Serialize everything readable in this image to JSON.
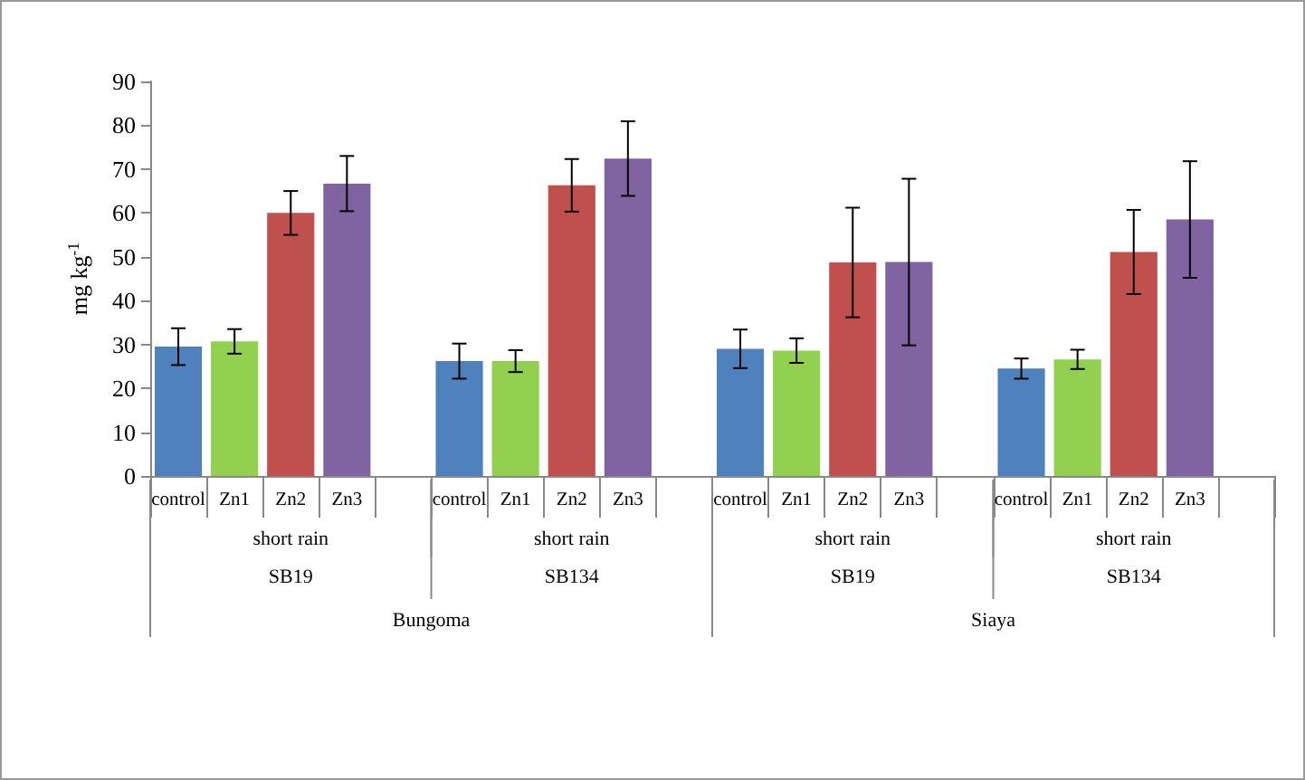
{
  "chart_data": {
    "type": "bar",
    "ylabel": "mg kg$^{-1}$",
    "categories": [
      "control",
      "Zn1",
      "Zn2",
      "Zn3",
      null,
      "control",
      "Zn1",
      "Zn2",
      "Zn3",
      null,
      "control",
      "Zn1",
      "Zn2",
      "Zn3",
      null,
      "control",
      "Zn1",
      "Zn2",
      "Zn3",
      null
    ],
    "values": [
      29.5,
      30.7,
      60,
      66.7,
      null,
      26.2,
      26.2,
      66.3,
      72.4,
      null,
      29,
      28.6,
      48.7,
      48.8,
      null,
      24.5,
      26.6,
      51.1,
      58.5,
      null
    ],
    "errors": [
      4.2,
      2.8,
      5,
      6.3,
      null,
      4,
      2.5,
      6,
      8.5,
      null,
      4.4,
      2.8,
      12.5,
      19,
      null,
      2.3,
      2.2,
      9.6,
      13.3,
      null
    ],
    "colors": [
      "#4f81bd",
      "#92d050",
      "#c0504d",
      "#8064a2",
      "#ffffff",
      "#4f81bd",
      "#92d050",
      "#c0504d",
      "#8064a2",
      "#ffffff",
      "#4f81bd",
      "#92d050",
      "#c0504d",
      "#8064a2",
      "#ffffff",
      "#4f81bd",
      "#92d050",
      "#c0504d",
      "#8064a2",
      "#ffffff"
    ],
    "ylim": [
      0,
      90
    ],
    "yticks": [
      0,
      10,
      20,
      30,
      40,
      50,
      60,
      70,
      80,
      90
    ],
    "grid": false,
    "annotations": [
      "short rain",
      "short rain",
      "short rain",
      "short rain",
      "SB19",
      "SB134",
      "SB19",
      "SB134",
      "Bungoma",
      "Siaya"
    ]
  }
}
